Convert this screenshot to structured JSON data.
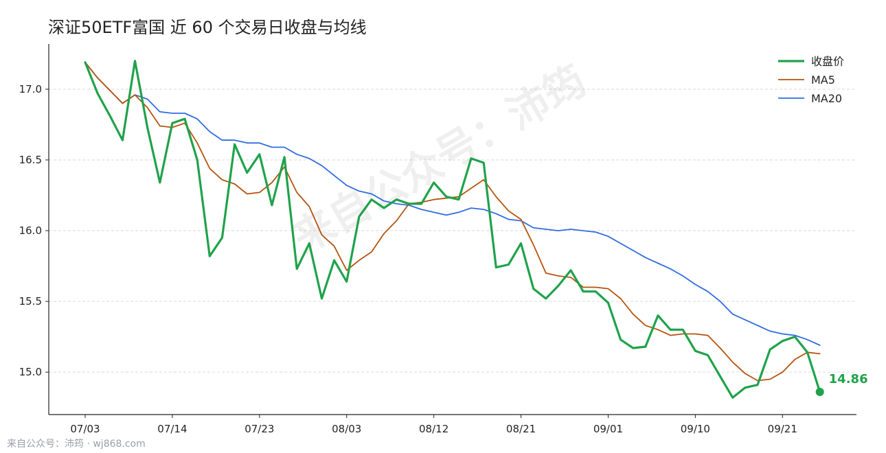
{
  "chart_data": {
    "type": "line",
    "title": "深证50ETF富国 近 60 个交易日收盘与均线",
    "xlabel": "",
    "ylabel": "",
    "ylim": [
      14.7,
      17.32
    ],
    "y_ticks": [
      15.0,
      15.5,
      16.0,
      16.5,
      17.0
    ],
    "y_tick_labels": [
      "15.0",
      "15.5",
      "16.0",
      "16.5",
      "17.0"
    ],
    "x_tick_labels": [
      {
        "index": 0,
        "label": "07/03"
      },
      {
        "index": 7,
        "label": "07/14"
      },
      {
        "index": 14,
        "label": "07/23"
      },
      {
        "index": 21,
        "label": "08/03"
      },
      {
        "index": 28,
        "label": "08/12"
      },
      {
        "index": 35,
        "label": "08/21"
      },
      {
        "index": 42,
        "label": "09/01"
      },
      {
        "index": 49,
        "label": "09/10"
      },
      {
        "index": 56,
        "label": "09/21"
      }
    ],
    "grid": "y",
    "legend_position": "top-right",
    "series": [
      {
        "name": "收盘价",
        "color": "#1fa24a",
        "values": [
          17.19,
          16.97,
          16.81,
          16.64,
          17.2,
          16.73,
          16.34,
          16.76,
          16.79,
          16.5,
          15.82,
          15.95,
          16.61,
          16.41,
          16.54,
          16.18,
          16.52,
          15.73,
          15.91,
          15.52,
          15.79,
          15.64,
          16.1,
          16.22,
          16.16,
          16.22,
          16.19,
          16.19,
          16.34,
          16.24,
          16.22,
          16.51,
          16.48,
          15.74,
          15.76,
          15.91,
          15.59,
          15.52,
          15.61,
          15.72,
          15.57,
          15.57,
          15.49,
          15.23,
          15.17,
          15.18,
          15.4,
          15.3,
          15.3,
          15.15,
          15.12,
          14.97,
          14.82,
          14.89,
          14.91,
          15.16,
          15.22,
          15.25,
          15.14,
          14.86
        ]
      },
      {
        "name": "MA5",
        "color": "#b5530f",
        "values": [
          17.19,
          17.08,
          16.99,
          16.9,
          16.96,
          16.87,
          16.74,
          16.73,
          16.76,
          16.62,
          16.44,
          16.36,
          16.33,
          16.26,
          16.27,
          16.34,
          16.45,
          16.27,
          16.17,
          15.97,
          15.89,
          15.72,
          15.79,
          15.85,
          15.98,
          16.07,
          16.19,
          16.2,
          16.22,
          16.23,
          16.24,
          16.3,
          16.36,
          16.24,
          16.14,
          16.08,
          15.9,
          15.7,
          15.68,
          15.67,
          15.6,
          15.6,
          15.59,
          15.52,
          15.41,
          15.33,
          15.3,
          15.26,
          15.27,
          15.27,
          15.26,
          15.17,
          15.07,
          14.99,
          14.94,
          14.95,
          15.0,
          15.09,
          15.14,
          15.13
        ]
      },
      {
        "name": "MA20",
        "color": "#2f6bdf",
        "values": [
          17.19,
          17.08,
          16.99,
          16.9,
          16.96,
          16.93,
          16.84,
          16.83,
          16.83,
          16.79,
          16.7,
          16.64,
          16.64,
          16.62,
          16.62,
          16.59,
          16.59,
          16.54,
          16.51,
          16.46,
          16.39,
          16.32,
          16.28,
          16.26,
          16.21,
          16.19,
          16.18,
          16.15,
          16.13,
          16.11,
          16.13,
          16.16,
          16.15,
          16.12,
          16.08,
          16.07,
          16.02,
          16.01,
          16.0,
          16.01,
          16.0,
          15.99,
          15.96,
          15.91,
          15.86,
          15.81,
          15.77,
          15.73,
          15.68,
          15.62,
          15.57,
          15.5,
          15.41,
          15.37,
          15.33,
          15.29,
          15.27,
          15.26,
          15.23,
          15.19
        ]
      }
    ],
    "last_value_label": "14.86"
  },
  "watermark": "来自公众号：沛筠",
  "footer": "来自公众号：沛筠 · wj868.com"
}
